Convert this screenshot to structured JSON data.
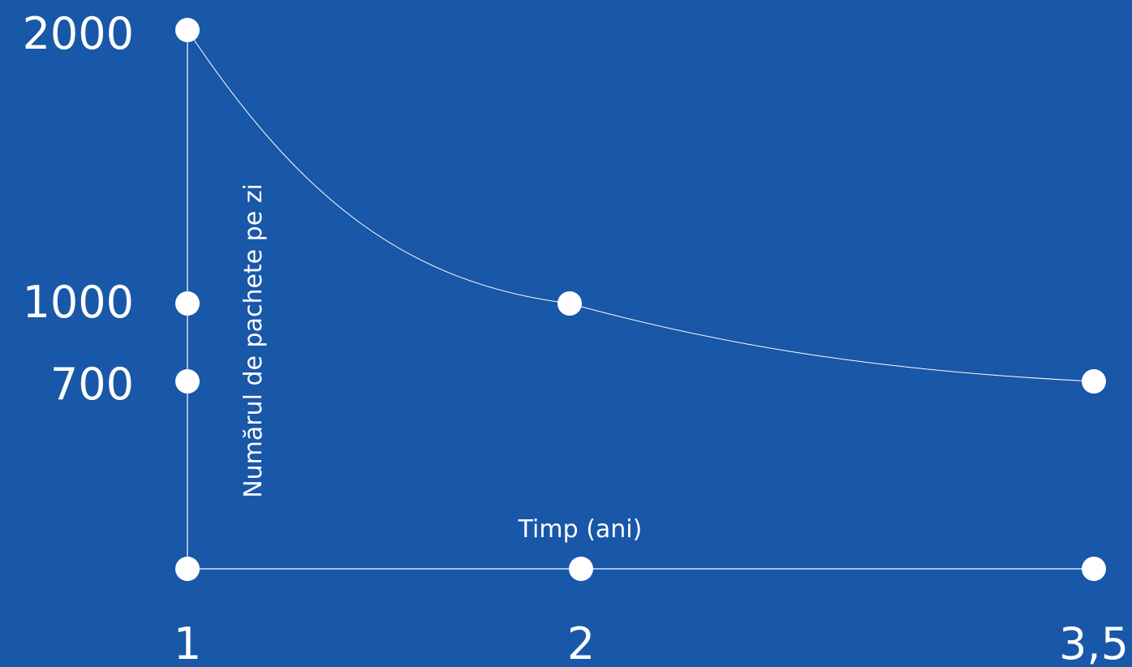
{
  "colors": {
    "background": "#1957a8",
    "foreground": "#ffffff"
  },
  "chart_data": {
    "type": "line",
    "title": "",
    "xlabel": "Timp (ani)",
    "ylabel": "Numărul de pachete pe zi",
    "x_tick_labels": [
      "1",
      "2",
      "3,5"
    ],
    "y_tick_labels": [
      "2000",
      "1000",
      "700"
    ],
    "grid": false,
    "legend": "none",
    "series": [
      {
        "points": [
          {
            "x": 1,
            "y": 2000
          },
          {
            "x": 2,
            "y": 1000
          },
          {
            "x": 3.5,
            "y": 700
          }
        ]
      }
    ]
  }
}
